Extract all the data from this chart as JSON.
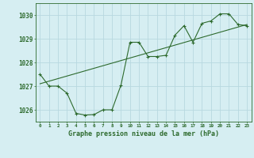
{
  "title": "Graphe pression niveau de la mer (hPa)",
  "background_color": "#d6eef2",
  "grid_color": "#b8d8e0",
  "line_color": "#2d6a2d",
  "marker_color": "#2d6a2d",
  "xlim": [
    -0.5,
    23.5
  ],
  "ylim": [
    1025.5,
    1030.5
  ],
  "yticks": [
    1026,
    1027,
    1028,
    1029,
    1030
  ],
  "xtick_labels": [
    "0",
    "1",
    "2",
    "3",
    "4",
    "5",
    "6",
    "7",
    "8",
    "9",
    "10",
    "11",
    "12",
    "13",
    "14",
    "15",
    "16",
    "17",
    "18",
    "19",
    "20",
    "21",
    "22",
    "23"
  ],
  "hours": [
    0,
    1,
    2,
    3,
    4,
    5,
    6,
    7,
    8,
    9,
    10,
    11,
    12,
    13,
    14,
    15,
    16,
    17,
    18,
    19,
    20,
    21,
    22,
    23
  ],
  "pressures": [
    1027.5,
    1027.0,
    1027.0,
    1026.7,
    1025.85,
    1025.78,
    1025.8,
    1026.0,
    1026.0,
    1027.05,
    1028.85,
    1028.85,
    1028.25,
    1028.25,
    1028.3,
    1029.15,
    1029.55,
    1028.85,
    1029.65,
    1029.75,
    1030.05,
    1030.05,
    1029.6,
    1029.55
  ],
  "trend_x": [
    0,
    23
  ],
  "trend_y": [
    1027.1,
    1029.6
  ]
}
